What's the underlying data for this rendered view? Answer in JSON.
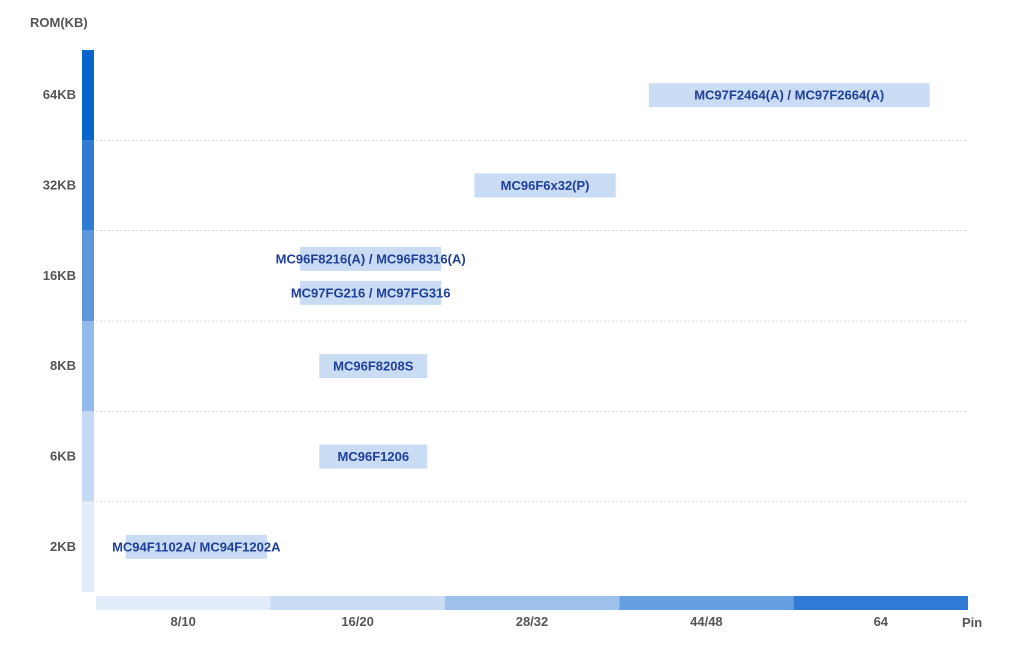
{
  "chart_data": {
    "type": "bar",
    "orientation": "horizontal-range",
    "y_axis_title": "ROM(KB)",
    "x_axis_title": "Pin",
    "y_categories": [
      "64KB",
      "32KB",
      "16KB",
      "8KB",
      "6KB",
      "2KB"
    ],
    "x_categories": [
      "8/10",
      "16/20",
      "28/32",
      "44/48",
      "64"
    ],
    "grid": true,
    "series": [
      {
        "label": "MC97F2464(A) / MC97F2664(A)",
        "rom": "64KB",
        "pin_start": "44/48",
        "pin_end": "64"
      },
      {
        "label": "MC96F6x32(P)",
        "rom": "32KB",
        "pin_start": "28/32",
        "pin_end": "44/48"
      },
      {
        "label": "MC96F8216(A) / MC96F8316(A)",
        "rom": "16KB",
        "pin_start": "16/20",
        "pin_end": "28/32"
      },
      {
        "label": "MC97FG216 / MC97FG316",
        "rom": "16KB",
        "pin_start": "16/20",
        "pin_end": "28/32"
      },
      {
        "label": "MC96F8208S",
        "rom": "8KB",
        "pin_start": "16/20",
        "pin_end": "16/20"
      },
      {
        "label": "MC96F1206",
        "rom": "6KB",
        "pin_start": "16/20",
        "pin_end": "16/20"
      },
      {
        "label": "MC94F1102A/ MC94F1202A",
        "rom": "2KB",
        "pin_start": "8/10",
        "pin_end": "16/20"
      }
    ],
    "colors": {
      "bar_fill": "#c9dcf3",
      "bar_text": "#1f3f9a",
      "axis_text": "#555555",
      "grid": "#d9d9d9",
      "y_gradient": [
        "#0a64cc",
        "#2f7bd6",
        "#5f97de",
        "#93baea",
        "#c4d9f3",
        "#e3edf9"
      ],
      "x_gradient": [
        "#e3edf9",
        "#c9dcf3",
        "#9dc1ea",
        "#67a0e1",
        "#2f7bd6"
      ]
    }
  }
}
